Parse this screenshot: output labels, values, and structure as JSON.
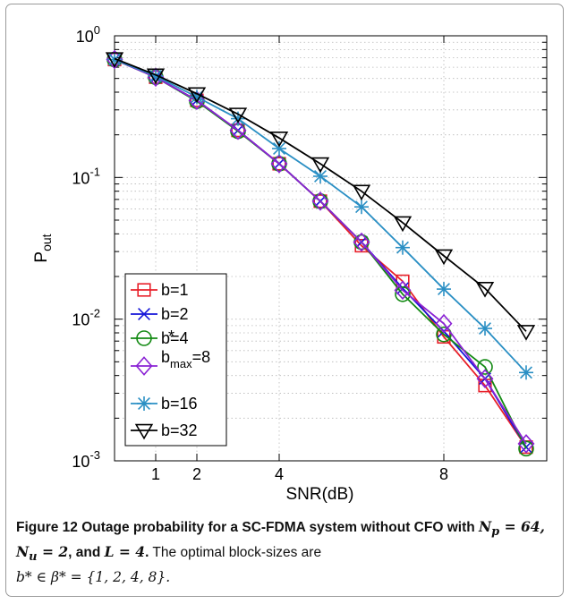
{
  "chart_data": {
    "type": "line",
    "xlabel": "SNR(dB)",
    "ylabel_main": "P",
    "ylabel_sub": "out",
    "yscale": "log",
    "xlim": [
      0,
      10.5
    ],
    "ylim": [
      0.001,
      1
    ],
    "xticks": [
      1,
      2,
      4,
      8
    ],
    "yticks": [
      {
        "value": 0.001,
        "base": "10",
        "exp": "-3"
      },
      {
        "value": 0.01,
        "base": "10",
        "exp": "-2"
      },
      {
        "value": 0.1,
        "base": "10",
        "exp": "-1"
      },
      {
        "value": 1,
        "base": "10",
        "exp": "0"
      }
    ],
    "grid": true,
    "legend_position": "lower-left",
    "x": [
      0,
      1,
      2,
      3,
      4,
      5,
      6,
      7,
      8,
      9,
      10
    ],
    "series": [
      {
        "name": "b=1",
        "color": "#e8202a",
        "marker": "square",
        "values": [
          0.68,
          0.51,
          0.35,
          0.215,
          0.125,
          0.068,
          0.033,
          0.0185,
          0.0075,
          0.0034,
          0.00125
        ]
      },
      {
        "name": "b=2",
        "color": "#1414d8",
        "marker": "x",
        "values": [
          0.68,
          0.51,
          0.35,
          0.215,
          0.125,
          0.068,
          0.035,
          0.0165,
          0.0082,
          0.0038,
          0.00125
        ]
      },
      {
        "name": "b=4",
        "color": "#138a13",
        "marker": "circle",
        "values": [
          0.68,
          0.51,
          0.345,
          0.212,
          0.125,
          0.068,
          0.035,
          0.015,
          0.0078,
          0.0046,
          0.00122
        ]
      },
      {
        "name": "b=8",
        "color": "#8a22d4",
        "marker": "diamond",
        "values": [
          0.68,
          0.51,
          0.35,
          0.215,
          0.125,
          0.068,
          0.035,
          0.016,
          0.0093,
          0.0038,
          0.00132
        ]
      },
      {
        "name": "b=16",
        "color": "#2a8fc4",
        "marker": "star",
        "values": [
          0.68,
          0.52,
          0.37,
          0.26,
          0.16,
          0.102,
          0.062,
          0.032,
          0.0163,
          0.0086,
          0.0042
        ]
      },
      {
        "name": "b=32",
        "color": "#000000",
        "marker": "triangle-down",
        "values": [
          0.69,
          0.53,
          0.39,
          0.28,
          0.19,
          0.125,
          0.08,
          0.048,
          0.028,
          0.0165,
          0.0082
        ]
      }
    ]
  },
  "legend": {
    "entries": [
      "b=1",
      "b=2",
      "b=4",
      "b=8",
      "b=16",
      "b=32"
    ],
    "b4_sup": "*",
    "b8_main": "b",
    "b8_sub": "max",
    "b8_rest": "=8"
  },
  "caption": {
    "figure_label": "Figure 12",
    "title_part1": " Outage probability for a SC-FDMA system without CFO with ",
    "math1": "N",
    "math1_sub": "p",
    "math1_rest": " = 64, ",
    "math2": "N",
    "math2_sub": "u",
    "math2_rest": " = 2",
    "and_text": ", and ",
    "math3": "L = 4",
    "title_end": ".",
    "body_text": " The optimal block-sizes are",
    "body_math": "b* ∈ β* = {1, 2, 4, 8}."
  }
}
